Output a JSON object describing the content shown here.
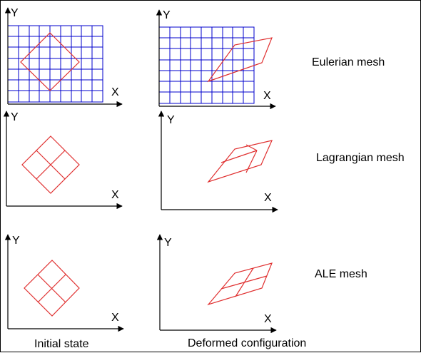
{
  "colors": {
    "grid": "#0000cc",
    "shape": "#e03030",
    "axis": "#000000",
    "border": "#000000"
  },
  "axis_labels": {
    "y": "Y",
    "x": "X"
  },
  "rows": [
    {
      "label": "Eulerian mesh"
    },
    {
      "label": "Lagrangian mesh"
    },
    {
      "label": "ALE mesh"
    }
  ],
  "columns": [
    {
      "label": "Initial state"
    },
    {
      "label": "Deformed configuration"
    }
  ]
}
